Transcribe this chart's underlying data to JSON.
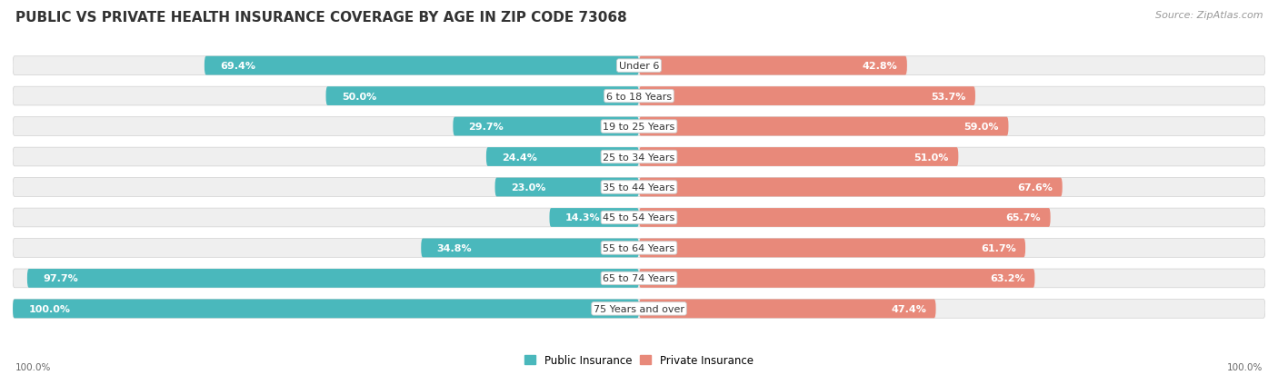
{
  "title": "PUBLIC VS PRIVATE HEALTH INSURANCE COVERAGE BY AGE IN ZIP CODE 73068",
  "source": "Source: ZipAtlas.com",
  "categories": [
    "Under 6",
    "6 to 18 Years",
    "19 to 25 Years",
    "25 to 34 Years",
    "35 to 44 Years",
    "45 to 54 Years",
    "55 to 64 Years",
    "65 to 74 Years",
    "75 Years and over"
  ],
  "public_values": [
    69.4,
    50.0,
    29.7,
    24.4,
    23.0,
    14.3,
    34.8,
    97.7,
    100.0
  ],
  "private_values": [
    42.8,
    53.7,
    59.0,
    51.0,
    67.6,
    65.7,
    61.7,
    63.2,
    47.4
  ],
  "public_color": "#4ab8bc",
  "private_color": "#e8897a",
  "row_bg_color": "#efefef",
  "label_color_inside": "#ffffff",
  "label_color_outside": "#777777",
  "axis_label_left": "100.0%",
  "axis_label_right": "100.0%",
  "legend_labels": [
    "Public Insurance",
    "Private Insurance"
  ],
  "title_fontsize": 11,
  "source_fontsize": 8,
  "bar_label_fontsize": 8,
  "category_fontsize": 8,
  "max_value": 100.0
}
